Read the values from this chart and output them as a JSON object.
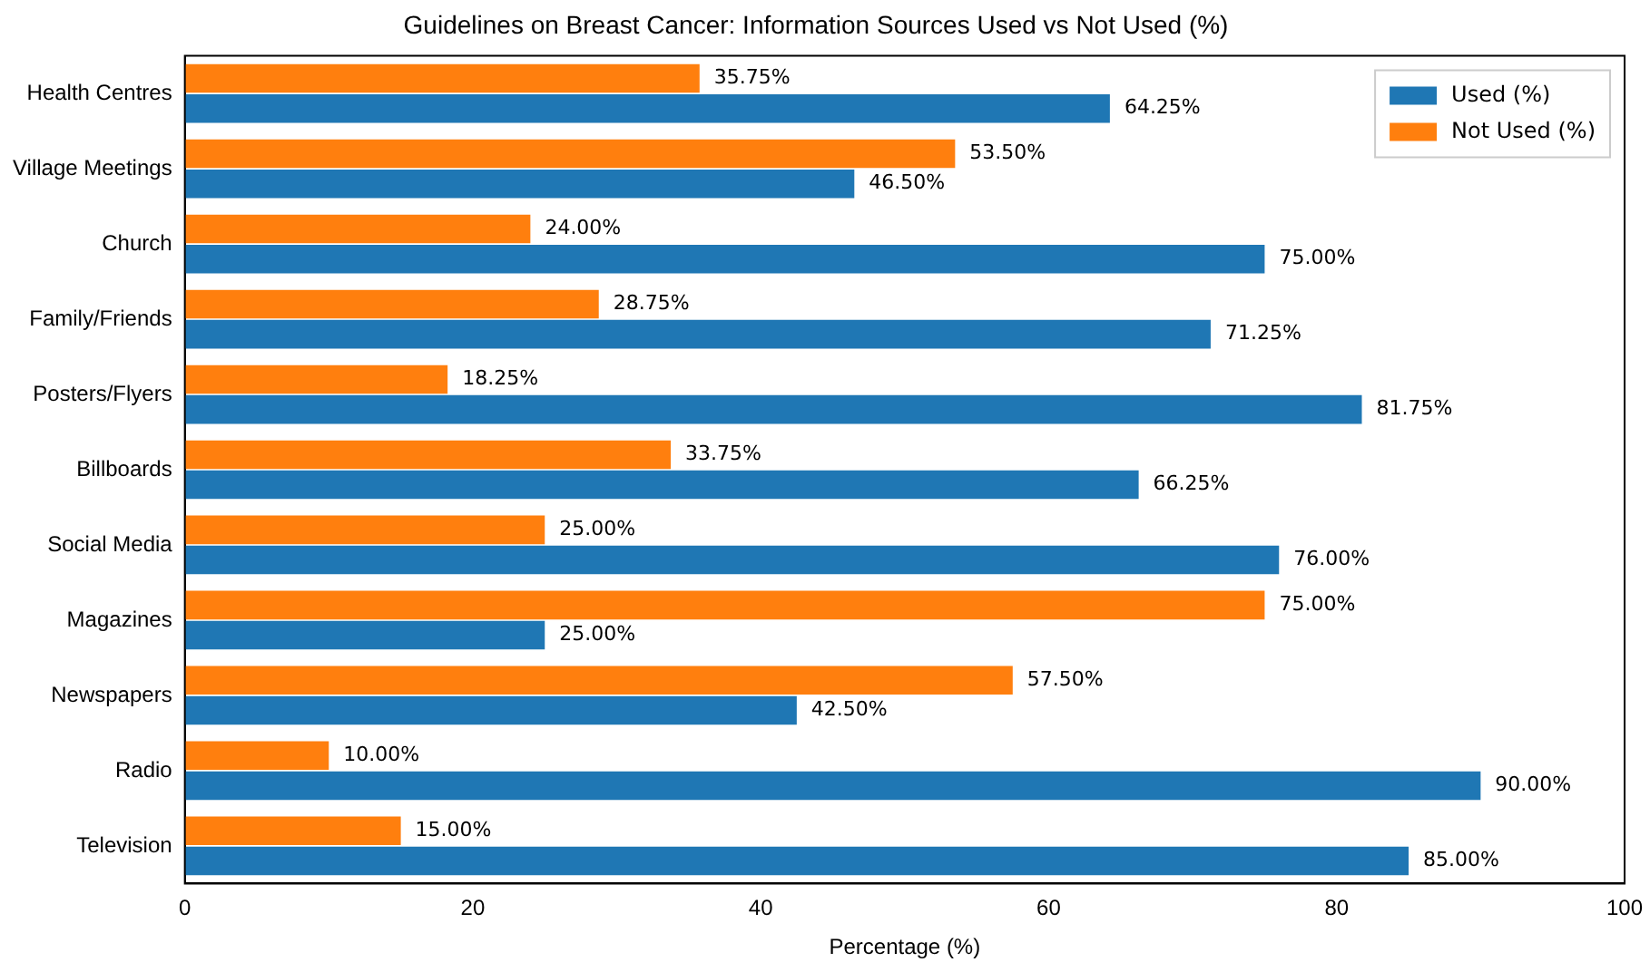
{
  "chart_data": {
    "type": "bar",
    "orientation": "horizontal",
    "title": "Guidelines on Breast Cancer: Information Sources Used vs Not Used (%)",
    "xlabel": "Percentage (%)",
    "categories": [
      "Health Centres",
      "Village Meetings",
      "Church",
      "Family/Friends",
      "Posters/Flyers",
      "Billboards",
      "Social Media",
      "Magazines",
      "Newspapers",
      "Radio",
      "Television"
    ],
    "series": [
      {
        "name": "Used (%)",
        "color": "#1f77b4",
        "values": [
          64.25,
          46.5,
          75,
          71.25,
          81.75,
          66.25,
          76,
          25,
          42.5,
          90,
          85
        ],
        "value_labels": [
          "64.25%",
          "46.50%",
          "75.00%",
          "71.25%",
          "81.75%",
          "66.25%",
          "76.00%",
          "25.00%",
          "42.50%",
          "90.00%",
          "85.00%"
        ]
      },
      {
        "name": "Not Used (%)",
        "color": "#ff7f0e",
        "values": [
          35.75,
          53.5,
          24,
          28.75,
          18.25,
          33.75,
          25,
          75,
          57.5,
          10,
          15
        ],
        "value_labels": [
          "35.75%",
          "53.50%",
          "24.00%",
          "28.75%",
          "18.25%",
          "33.75%",
          "25.00%",
          "75.00%",
          "57.50%",
          "10.00%",
          "15.00%"
        ]
      }
    ],
    "xlim": [
      0,
      100
    ],
    "xticks": [
      0,
      20,
      40,
      60,
      80,
      100
    ],
    "grid": false,
    "legend": "top right"
  }
}
